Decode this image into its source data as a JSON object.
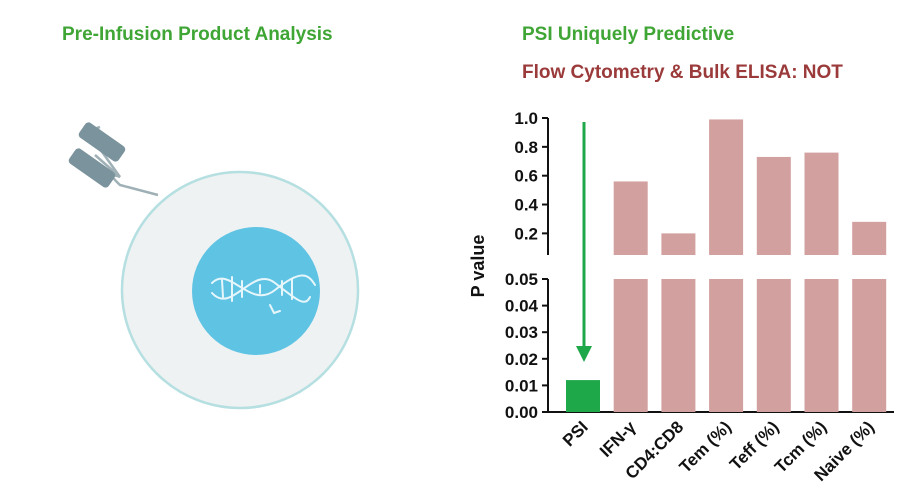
{
  "left_panel": {
    "title": "Pre-Infusion Product Analysis",
    "title_color": "#3fa535",
    "cell_membrane_color": "#eef2f2",
    "cell_border_color": "#b5dfe1",
    "nucleus_color": "#5fc3e4",
    "icon": "dna-icon"
  },
  "chart_data": {
    "type": "bar",
    "title": "PSI Uniquely Predictive",
    "subtitle": "Flow Cytometry & Bulk ELISA: NOT",
    "title_color": "#3fa535",
    "subtitle_color": "#9b3a3a",
    "ylabel": "P value",
    "categories": [
      "PSI",
      "IFN-γ",
      "CD4:CD8",
      "Tem (%)",
      "Teff (%)",
      "Tcm (%)",
      "Naive (%)"
    ],
    "values": [
      0.012,
      0.56,
      0.2,
      0.99,
      0.73,
      0.76,
      0.28
    ],
    "bar_colors": [
      "#1fa84a",
      "#d3a0a0",
      "#d3a0a0",
      "#d3a0a0",
      "#d3a0a0",
      "#d3a0a0",
      "#d3a0a0"
    ],
    "axis_break": true,
    "lower_segment": {
      "ylim": [
        0,
        0.05
      ],
      "ticks": [
        "0.00",
        "0.01",
        "0.02",
        "0.03",
        "0.04",
        "0.05"
      ]
    },
    "upper_segment": {
      "ylim": [
        0.05,
        1.0
      ],
      "ticks": [
        "0.2",
        "0.4",
        "0.6",
        "0.8",
        "1.0"
      ]
    },
    "arrow_color": "#1fa84a",
    "grid": false
  }
}
